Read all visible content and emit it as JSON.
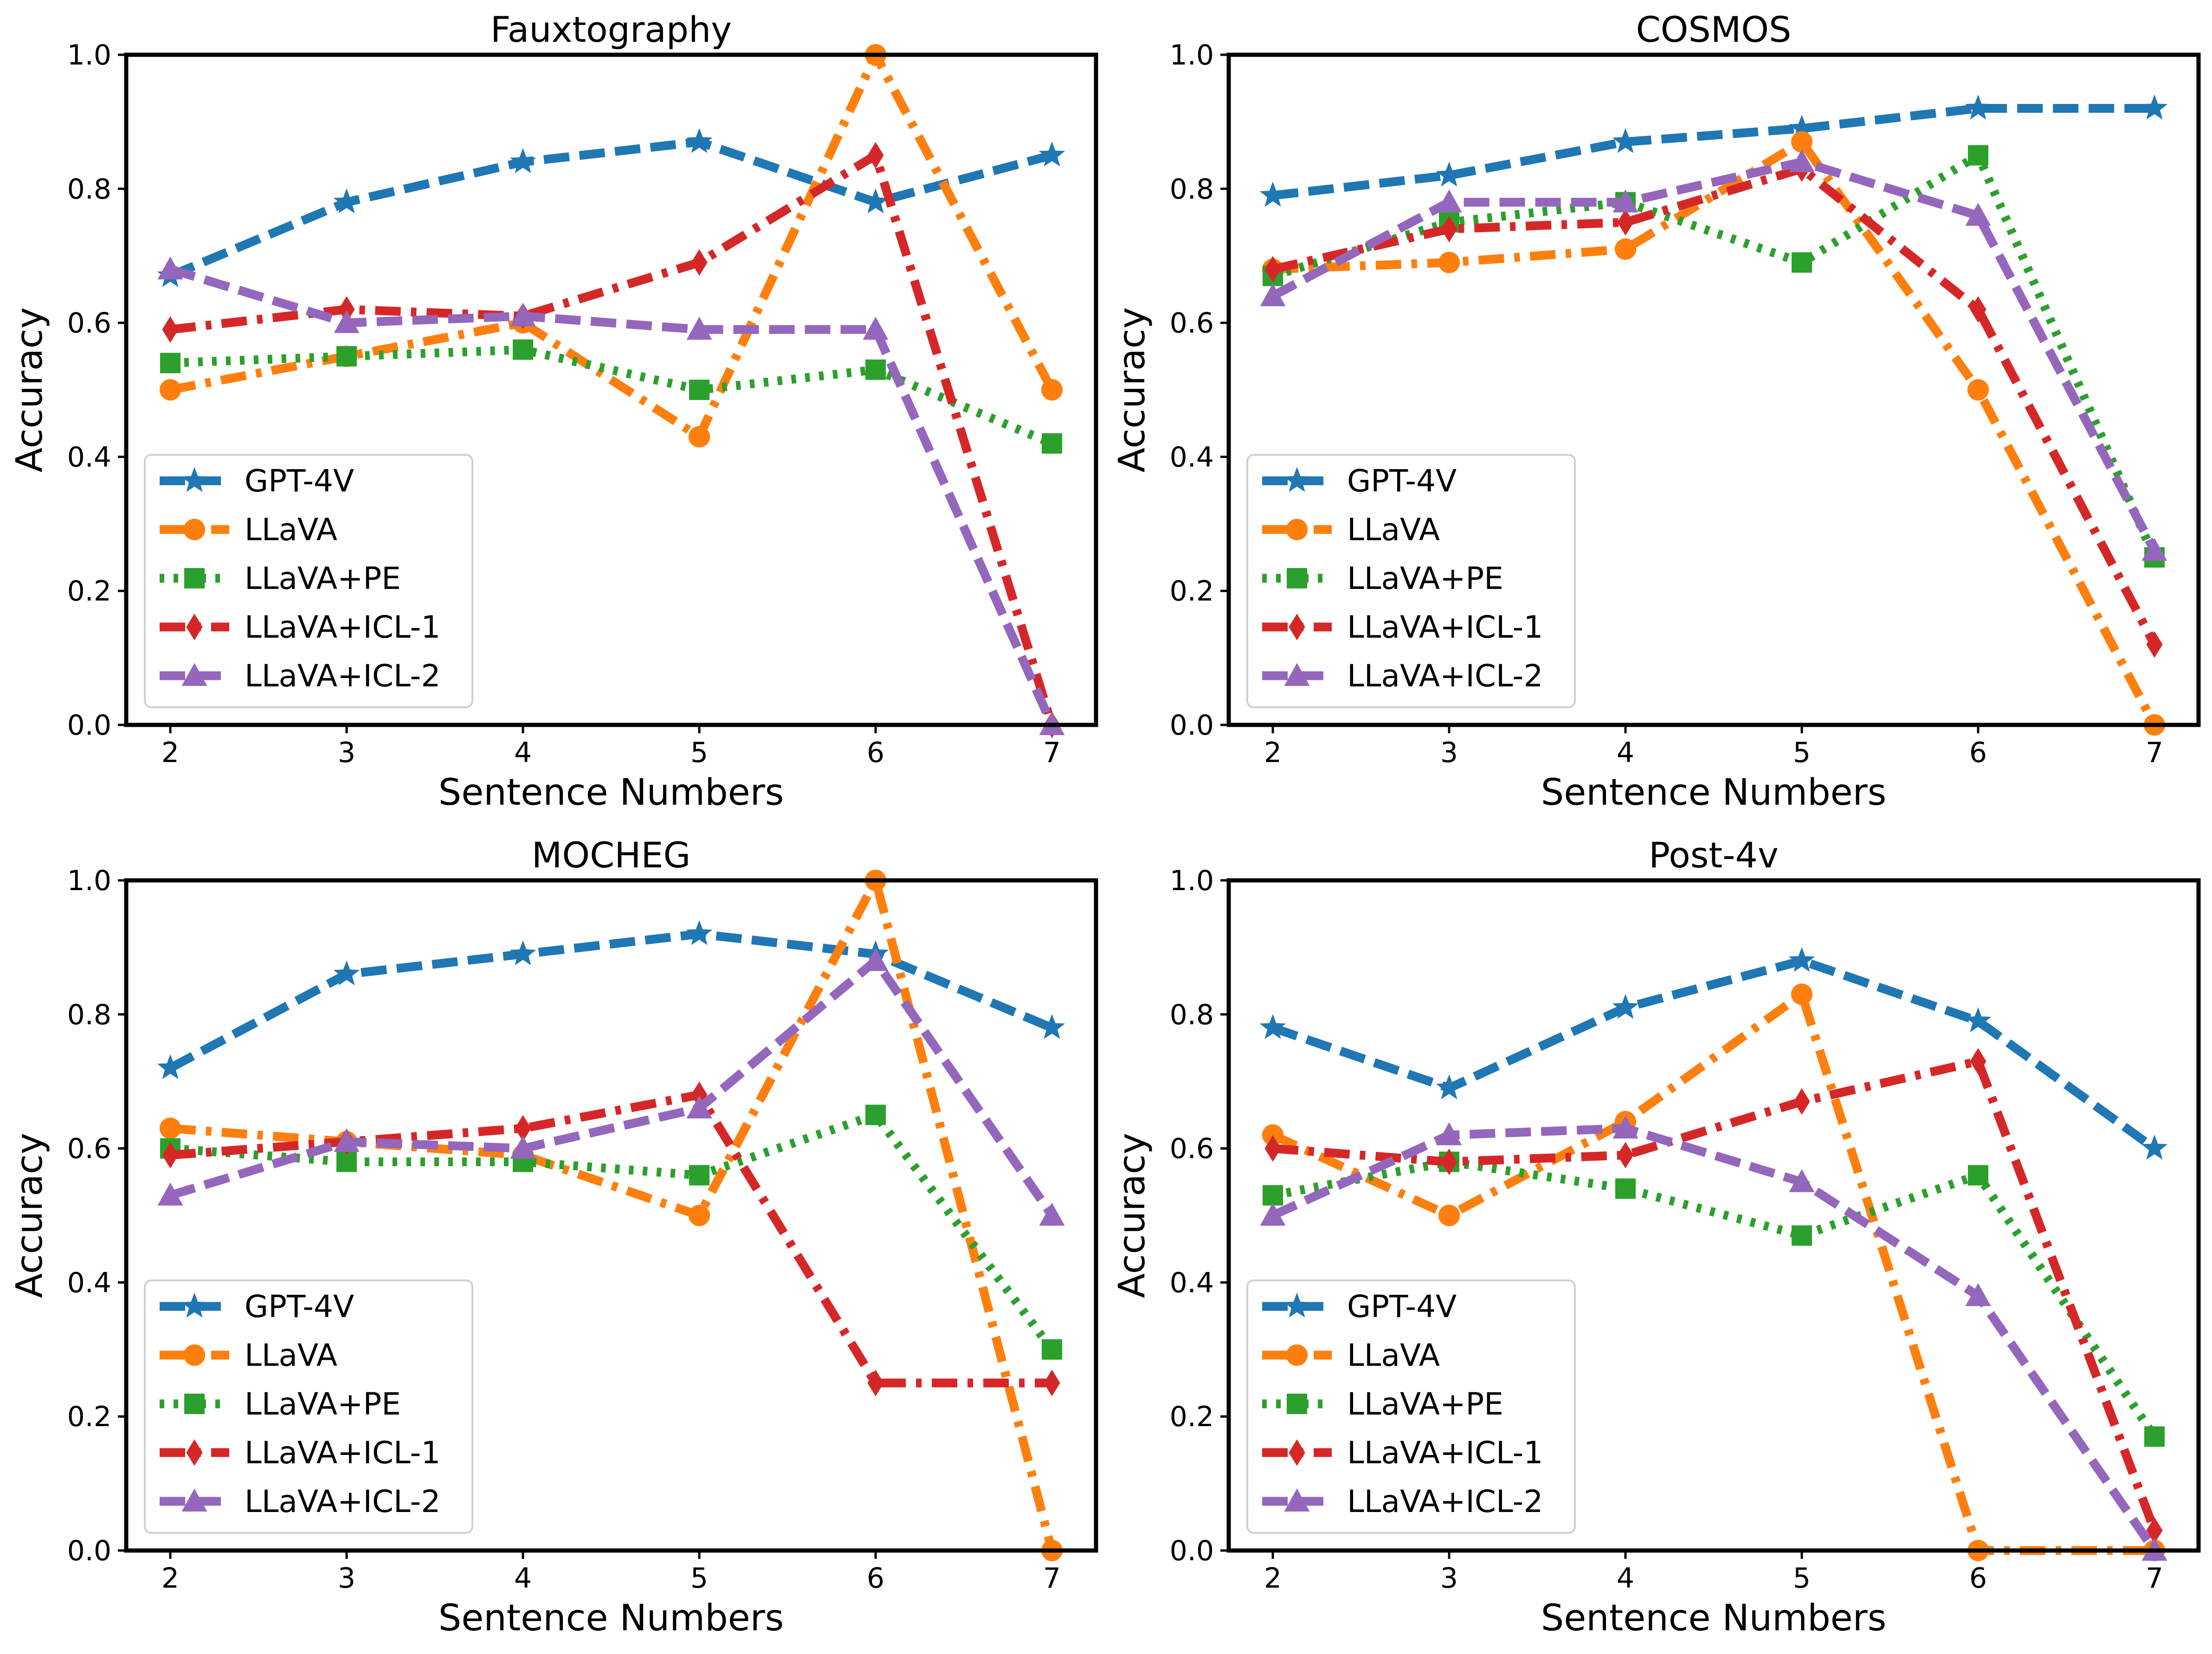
{
  "chart_data": [
    {
      "type": "line",
      "title": "Fauxtography",
      "xlabel": "Sentence Numbers",
      "ylabel": "Accuracy",
      "x": [
        2,
        3,
        4,
        5,
        6,
        7
      ],
      "xlim": [
        1.75,
        7.25
      ],
      "ylim": [
        0.0,
        1.0
      ],
      "yticks": [
        "0.0",
        "0.2",
        "0.4",
        "0.6",
        "0.8",
        "1.0"
      ],
      "legend_position": "lower-left",
      "series": [
        {
          "name": "GPT-4V",
          "values": [
            0.67,
            0.78,
            0.84,
            0.87,
            0.78,
            0.85
          ]
        },
        {
          "name": "LLaVA",
          "values": [
            0.5,
            0.55,
            0.6,
            0.43,
            1.0,
            0.5
          ]
        },
        {
          "name": "LLaVA+PE",
          "values": [
            0.54,
            0.55,
            0.56,
            0.5,
            0.53,
            0.42
          ]
        },
        {
          "name": "LLaVA+ICL-1",
          "values": [
            0.59,
            0.62,
            0.61,
            0.69,
            0.85,
            0.0
          ]
        },
        {
          "name": "LLaVA+ICL-2",
          "values": [
            0.68,
            0.6,
            0.61,
            0.59,
            0.59,
            0.0
          ]
        }
      ]
    },
    {
      "type": "line",
      "title": "COSMOS",
      "xlabel": "Sentence Numbers",
      "ylabel": "Accuracy",
      "x": [
        2,
        3,
        4,
        5,
        6,
        7
      ],
      "xlim": [
        1.75,
        7.25
      ],
      "ylim": [
        0.0,
        1.0
      ],
      "yticks": [
        "0.0",
        "0.2",
        "0.4",
        "0.6",
        "0.8",
        "1.0"
      ],
      "legend_position": "lower-left",
      "series": [
        {
          "name": "GPT-4V",
          "values": [
            0.79,
            0.82,
            0.87,
            0.89,
            0.92,
            0.92
          ]
        },
        {
          "name": "LLaVA",
          "values": [
            0.68,
            0.69,
            0.71,
            0.87,
            0.5,
            0.0
          ]
        },
        {
          "name": "LLaVA+PE",
          "values": [
            0.67,
            0.75,
            0.78,
            0.69,
            0.85,
            0.25
          ]
        },
        {
          "name": "LLaVA+ICL-1",
          "values": [
            0.68,
            0.74,
            0.75,
            0.83,
            0.62,
            0.12
          ]
        },
        {
          "name": "LLaVA+ICL-2",
          "values": [
            0.64,
            0.78,
            0.78,
            0.84,
            0.76,
            0.26
          ]
        }
      ]
    },
    {
      "type": "line",
      "title": "MOCHEG",
      "xlabel": "Sentence Numbers",
      "ylabel": "Accuracy",
      "x": [
        2,
        3,
        4,
        5,
        6,
        7
      ],
      "xlim": [
        1.75,
        7.25
      ],
      "ylim": [
        0.0,
        1.0
      ],
      "yticks": [
        "0.0",
        "0.2",
        "0.4",
        "0.6",
        "0.8",
        "1.0"
      ],
      "legend_position": "lower-left",
      "series": [
        {
          "name": "GPT-4V",
          "values": [
            0.72,
            0.86,
            0.89,
            0.92,
            0.89,
            0.78
          ]
        },
        {
          "name": "LLaVA",
          "values": [
            0.63,
            0.61,
            0.59,
            0.5,
            1.0,
            0.0
          ]
        },
        {
          "name": "LLaVA+PE",
          "values": [
            0.6,
            0.58,
            0.58,
            0.56,
            0.65,
            0.3
          ]
        },
        {
          "name": "LLaVA+ICL-1",
          "values": [
            0.59,
            0.61,
            0.63,
            0.68,
            0.25,
            0.25
          ]
        },
        {
          "name": "LLaVA+ICL-2",
          "values": [
            0.53,
            0.61,
            0.6,
            0.66,
            0.88,
            0.5
          ]
        }
      ]
    },
    {
      "type": "line",
      "title": "Post-4v",
      "xlabel": "Sentence Numbers",
      "ylabel": "Accuracy",
      "x": [
        2,
        3,
        4,
        5,
        6,
        7
      ],
      "xlim": [
        1.75,
        7.25
      ],
      "ylim": [
        0.0,
        1.0
      ],
      "yticks": [
        "0.0",
        "0.2",
        "0.4",
        "0.6",
        "0.8",
        "1.0"
      ],
      "legend_position": "lower-left",
      "series": [
        {
          "name": "GPT-4V",
          "values": [
            0.78,
            0.69,
            0.81,
            0.88,
            0.79,
            0.6
          ]
        },
        {
          "name": "LLaVA",
          "values": [
            0.62,
            0.5,
            0.64,
            0.83,
            0.0,
            0.0
          ]
        },
        {
          "name": "LLaVA+PE",
          "values": [
            0.53,
            0.58,
            0.54,
            0.47,
            0.56,
            0.17
          ]
        },
        {
          "name": "LLaVA+ICL-1",
          "values": [
            0.6,
            0.58,
            0.59,
            0.67,
            0.73,
            0.03
          ]
        },
        {
          "name": "LLaVA+ICL-2",
          "values": [
            0.5,
            0.62,
            0.63,
            0.55,
            0.38,
            0.0
          ]
        }
      ]
    }
  ],
  "series_styles": [
    {
      "color": "#1f77b4",
      "marker": "star",
      "dash": "dashed"
    },
    {
      "color": "#ff7f0e",
      "marker": "circle",
      "dash": "dashdot"
    },
    {
      "color": "#2ca02c",
      "marker": "square",
      "dash": "dotted"
    },
    {
      "color": "#d62728",
      "marker": "diamond",
      "dash": "dashdot"
    },
    {
      "color": "#9467bd",
      "marker": "triangle",
      "dash": "dashed"
    }
  ]
}
